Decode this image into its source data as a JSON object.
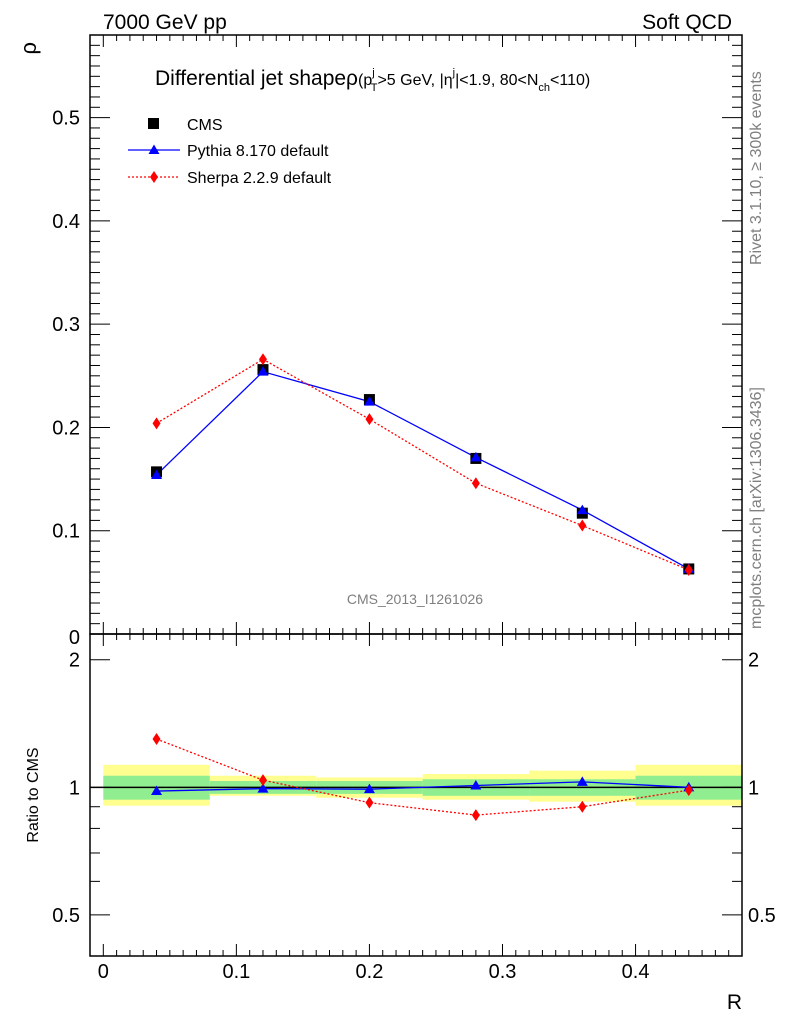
{
  "header": {
    "left_label": "7000 GeV pp",
    "right_label": "Soft QCD"
  },
  "side_labels": {
    "top": "Rivet 3.1.10, ≥ 300k events",
    "bottom": "mcplots.cern.ch [arXiv:1306.3436]"
  },
  "chart_data": [
    {
      "type": "line",
      "panel": "main",
      "title_main": "Differential jet shapeρ",
      "title_sub": "(p",
      "title_sub_sup_j": "j",
      "title_sub_T": "T",
      "title_sub_mid": ">5 GeV, |η",
      "title_sub_sup_j2": "j",
      "title_sub_tail": "|<1.9, 80<N",
      "title_sub_ch": "ch",
      "title_sub_end": "<110)",
      "ylabel": "ρ",
      "xlabel": "",
      "watermark": "CMS_2013_I1261026",
      "xlim": [
        -0.01,
        0.48
      ],
      "ylim": [
        0,
        0.58
      ],
      "x_ticks": [
        0,
        0.1,
        0.2,
        0.3,
        0.4
      ],
      "y_ticks": [
        0.1,
        0.2,
        0.3,
        0.4,
        0.5
      ],
      "y_tick_labels": [
        "0.1",
        "0.2",
        "0.3",
        "0.4",
        "0.5"
      ],
      "y_zero_label": "0",
      "legend_position": "top-left",
      "x": [
        0.04,
        0.12,
        0.2,
        0.28,
        0.36,
        0.44
      ],
      "series": [
        {
          "name": "CMS",
          "marker": "square",
          "color": "#000000",
          "values": [
            0.157,
            0.256,
            0.227,
            0.17,
            0.117,
            0.063
          ]
        },
        {
          "name": "Pythia 8.170 default",
          "marker": "triangle",
          "color": "#0000ff",
          "line": "solid",
          "values": [
            0.154,
            0.254,
            0.225,
            0.171,
            0.12,
            0.063
          ]
        },
        {
          "name": "Sherpa 2.2.9 default",
          "marker": "diamond",
          "color": "#ff0000",
          "line": "dotted",
          "values": [
            0.204,
            0.266,
            0.208,
            0.146,
            0.105,
            0.062
          ]
        }
      ]
    },
    {
      "type": "line",
      "panel": "ratio",
      "ylabel": "Ratio to CMS",
      "xlabel": "R",
      "xlim": [
        -0.01,
        0.48
      ],
      "ylim": [
        0.4,
        2.3
      ],
      "scale": "log",
      "x_ticks": [
        0,
        0.1,
        0.2,
        0.3,
        0.4
      ],
      "x_tick_labels": [
        "0",
        "0.1",
        "0.2",
        "0.3",
        "0.4"
      ],
      "y_ticks": [
        0.5,
        1,
        2
      ],
      "y_tick_labels": [
        "0.5",
        "1",
        "2"
      ],
      "x": [
        0.04,
        0.12,
        0.2,
        0.28,
        0.36,
        0.44
      ],
      "bin_edges": [
        0,
        0.08,
        0.16,
        0.24,
        0.32,
        0.4,
        0.48
      ],
      "band_stat": {
        "color": "#90ee90",
        "lo": [
          0.935,
          0.965,
          0.965,
          0.955,
          0.955,
          0.935
        ],
        "hi": [
          1.065,
          1.035,
          1.035,
          1.045,
          1.045,
          1.065
        ]
      },
      "band_total": {
        "color": "#ffff90",
        "lo": [
          0.905,
          0.955,
          0.945,
          0.935,
          0.925,
          0.905
        ],
        "hi": [
          1.13,
          1.065,
          1.055,
          1.075,
          1.095,
          1.13
        ]
      },
      "series": [
        {
          "name": "Pythia 8.170 default",
          "marker": "triangle",
          "color": "#0000ff",
          "line": "solid",
          "values": [
            0.98,
            0.993,
            0.99,
            1.01,
            1.03,
            1.0
          ]
        },
        {
          "name": "Sherpa 2.2.9 default",
          "marker": "diamond",
          "color": "#ff0000",
          "line": "dotted",
          "values": [
            1.3,
            1.04,
            0.92,
            0.86,
            0.9,
            0.985
          ]
        }
      ]
    }
  ]
}
